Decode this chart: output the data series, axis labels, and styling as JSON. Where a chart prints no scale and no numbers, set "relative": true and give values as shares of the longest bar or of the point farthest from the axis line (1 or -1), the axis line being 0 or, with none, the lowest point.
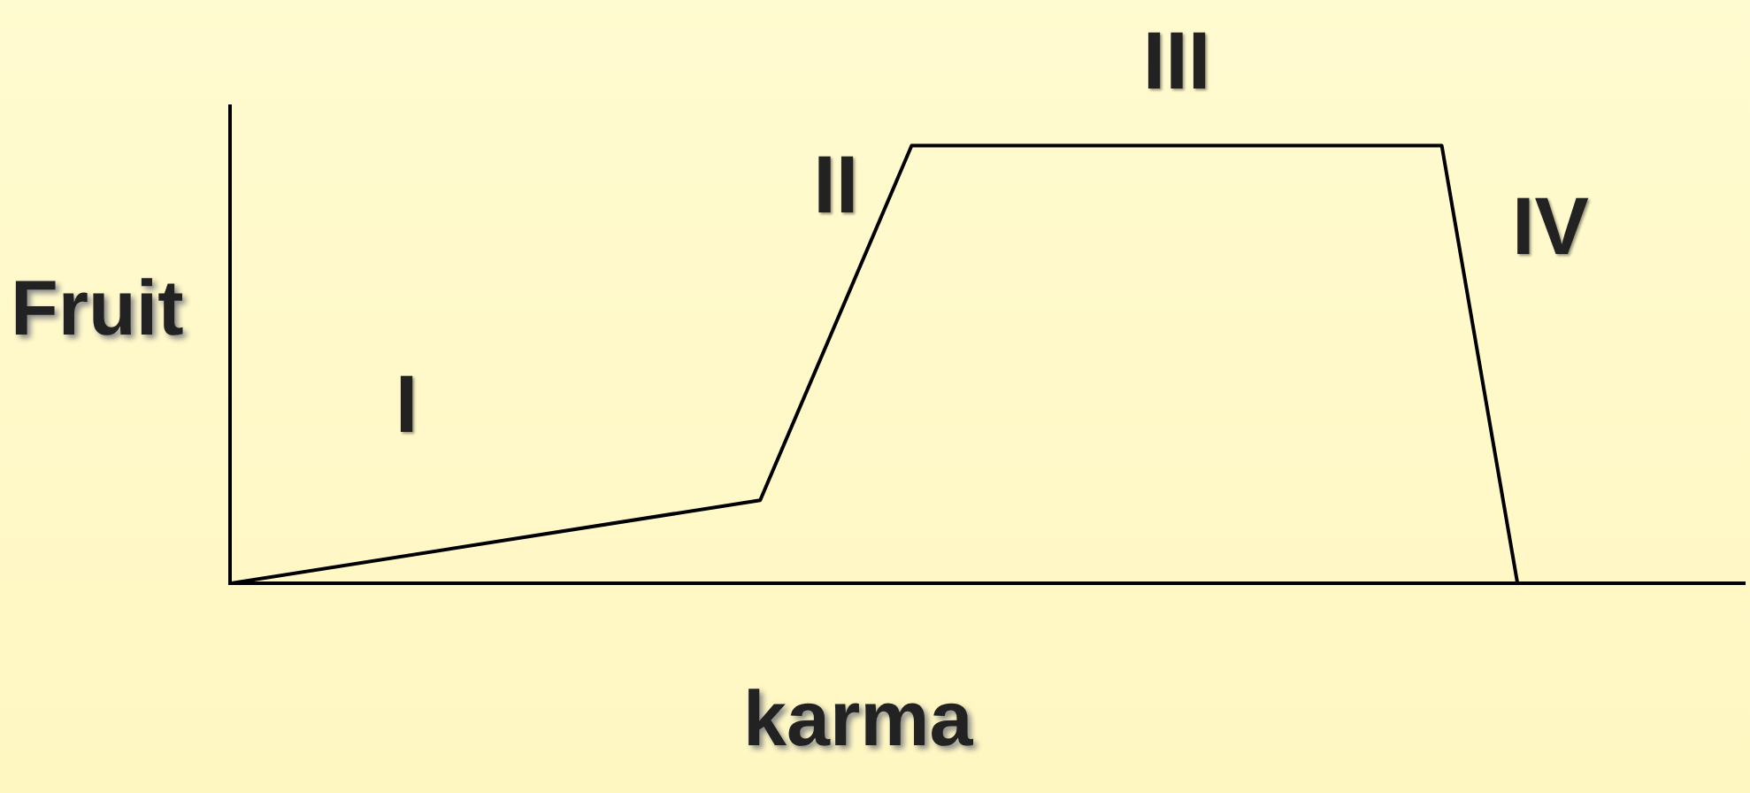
{
  "chart_data": {
    "type": "line",
    "relative": true,
    "xlabel": "karma",
    "ylabel": "Fruit",
    "categories": [
      null,
      null,
      null,
      null,
      null,
      null,
      null,
      null,
      null,
      null,
      null,
      null,
      null,
      null,
      null,
      null,
      null,
      null,
      null,
      null,
      null
    ],
    "series": [
      {
        "color": "#000000",
        "values": [
          0,
          null,
          null,
          null,
          null,
          null,
          null,
          0.19,
          null,
          1,
          null,
          null,
          null,
          null,
          null,
          null,
          1,
          0,
          null,
          null,
          null
        ]
      }
    ],
    "annotations": [
      "I",
      "II",
      "III",
      "IV"
    ],
    "grid": false,
    "legend": false,
    "marker": "none",
    "line_style": "solid"
  }
}
